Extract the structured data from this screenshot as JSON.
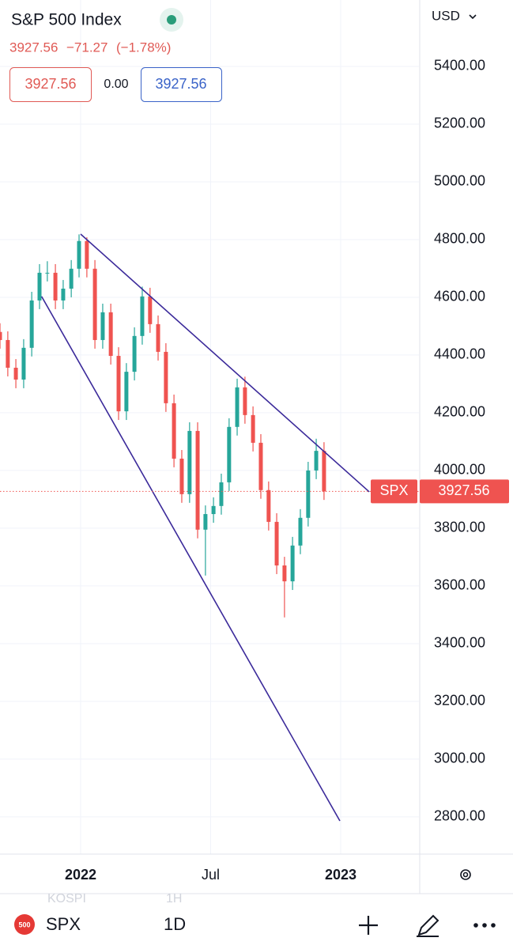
{
  "header": {
    "title": "S&P 500 Index",
    "price": "3927.56",
    "change": "−71.27",
    "change_pct": "(−1.78%)",
    "bid": "3927.56",
    "spread": "0.00",
    "ask": "3927.56",
    "currency": "USD"
  },
  "toolbar": {
    "badge": "500",
    "symbol": "SPX",
    "interval": "1D",
    "ghost_symbol": "KOSPI",
    "ghost_interval": "1H"
  },
  "chart_data": {
    "type": "candlestick",
    "price_label": "SPX",
    "up_color": "#26a69a",
    "down_color": "#ef5350",
    "xlim": [
      2021.69,
      2023.301
    ],
    "xticks": [
      2022,
      {
        "value": 2022.5,
        "label": "Jul"
      },
      2023
    ],
    "ylim": [
      2671,
      5630
    ],
    "yticks": [
      {
        "value": 2800,
        "label": "2800.00"
      },
      {
        "value": 3000,
        "label": "3000.00"
      },
      {
        "value": 3200,
        "label": "3200.00"
      },
      {
        "value": 3400,
        "label": "3400.00"
      },
      {
        "value": 3600,
        "label": "3600.00"
      },
      {
        "value": 3800,
        "label": "3800.00"
      },
      {
        "value": 4000,
        "label": "4000.00"
      },
      {
        "value": 4200,
        "label": "4200.00"
      },
      {
        "value": 4400,
        "label": "4400.00"
      },
      {
        "value": 4600,
        "label": "4600.00"
      },
      {
        "value": 4800,
        "label": "4800.00"
      },
      {
        "value": 5000,
        "label": "5000.00"
      },
      {
        "value": 5200,
        "label": "5200.00"
      },
      {
        "value": 5400,
        "label": "5400.00"
      }
    ],
    "grid": true,
    "x": [
      2021.69,
      2021.72,
      2021.751,
      2021.781,
      2021.812,
      2021.842,
      2021.872,
      2021.903,
      2021.933,
      2021.964,
      2021.994,
      2022.024,
      2022.055,
      2022.085,
      2022.116,
      2022.146,
      2022.176,
      2022.207,
      2022.237,
      2022.267,
      2022.298,
      2022.328,
      2022.359,
      2022.389,
      2022.419,
      2022.45,
      2022.48,
      2022.511,
      2022.541,
      2022.571,
      2022.602,
      2022.632,
      2022.663,
      2022.693,
      2022.723,
      2022.754,
      2022.784,
      2022.815,
      2022.845,
      2022.875,
      2022.906,
      2022.936
    ],
    "open": [
      4480,
      4452,
      4356,
      4315,
      4425,
      4589,
      4685,
      4685,
      4589,
      4630,
      4699,
      4795,
      4699,
      4452,
      4548,
      4397,
      4205,
      4342,
      4466,
      4603,
      4507,
      4411,
      4233,
      4041,
      3918,
      4137,
      3795,
      3849,
      3877,
      3959,
      4151,
      4288,
      4192,
      4096,
      3932,
      3822,
      3671,
      3616,
      3740,
      3836,
      4000,
      4068
    ],
    "high": [
      4510,
      4482,
      4386,
      4455,
      4619,
      4715,
      4725,
      4715,
      4660,
      4729,
      4818,
      4808,
      4729,
      4578,
      4578,
      4427,
      4372,
      4496,
      4637,
      4633,
      4537,
      4441,
      4263,
      4071,
      4167,
      4167,
      3879,
      3907,
      3989,
      4181,
      4318,
      4325,
      4222,
      4126,
      3962,
      3852,
      3701,
      3770,
      3866,
      4030,
      4110,
      4098
    ],
    "low": [
      4422,
      4326,
      4285,
      4285,
      4395,
      4559,
      4655,
      4559,
      4559,
      4600,
      4669,
      4669,
      4422,
      4422,
      4367,
      4175,
      4175,
      4312,
      4436,
      4477,
      4381,
      4203,
      4011,
      3888,
      3888,
      3765,
      3636,
      3819,
      3847,
      3929,
      4121,
      4162,
      4066,
      3902,
      3792,
      3641,
      3491,
      3586,
      3710,
      3806,
      3970,
      3898
    ],
    "close": [
      4452,
      4356,
      4315,
      4425,
      4589,
      4685,
      4685,
      4589,
      4630,
      4699,
      4795,
      4699,
      4452,
      4548,
      4397,
      4205,
      4342,
      4466,
      4603,
      4507,
      4411,
      4233,
      4041,
      3918,
      4137,
      3795,
      3849,
      3877,
      3959,
      4151,
      4288,
      4192,
      4096,
      3932,
      3822,
      3671,
      3616,
      3740,
      3836,
      4000,
      4068,
      3927.56
    ],
    "trend_lines": [
      {
        "x": [
          2022.0,
          2023.11
        ],
        "y": [
          4819,
          3926
        ],
        "color": "#3b2a9a"
      },
      {
        "x": [
          2021.85,
          2022.997
        ],
        "y": [
          4603,
          2786
        ],
        "color": "#3b2a9a"
      }
    ]
  }
}
